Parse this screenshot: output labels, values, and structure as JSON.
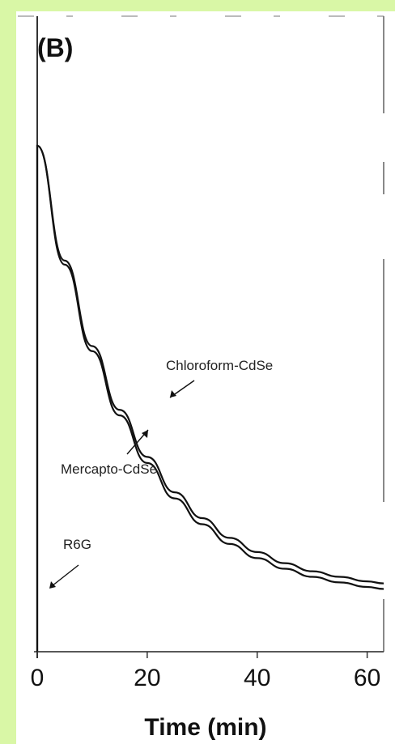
{
  "panel_label": "(B)",
  "chart_data": {
    "type": "line",
    "xlabel": "Time (min)",
    "ylabel": "",
    "xlim": [
      0,
      63
    ],
    "x_ticks": [
      "0",
      "20",
      "40",
      "60"
    ],
    "grid": false,
    "series": [
      {
        "name": "Chloroform-CdSe",
        "x": [
          0,
          5,
          10,
          15,
          20,
          25,
          30,
          35,
          40,
          45,
          50,
          55,
          60,
          63
        ],
        "values": [
          1.0,
          0.773,
          0.604,
          0.478,
          0.385,
          0.315,
          0.264,
          0.225,
          0.197,
          0.175,
          0.159,
          0.148,
          0.139,
          0.135
        ]
      },
      {
        "name": "Mercapto-CdSe",
        "x": [
          0,
          5,
          10,
          15,
          20,
          25,
          30,
          35,
          40,
          45,
          50,
          55,
          60,
          63
        ],
        "values": [
          1.0,
          0.765,
          0.594,
          0.467,
          0.373,
          0.303,
          0.252,
          0.213,
          0.185,
          0.164,
          0.148,
          0.137,
          0.128,
          0.124
        ]
      },
      {
        "name": "R6G",
        "x": [
          0,
          0.1,
          63
        ],
        "values": [
          0,
          0,
          0
        ]
      }
    ],
    "annotations": [
      "Chloroform-CdSe",
      "Mercapto-CdSe",
      "R6G"
    ]
  }
}
